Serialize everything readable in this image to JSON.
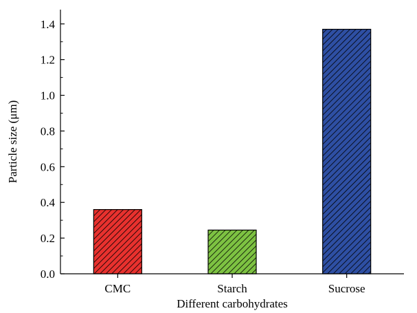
{
  "chart_data": {
    "type": "bar",
    "title": "",
    "categories": [
      "CMC",
      "Starch",
      "Sucrose"
    ],
    "series": [
      {
        "values": [
          0.36,
          0.245,
          1.37
        ],
        "colors": [
          "#e8312e",
          "#7dc242",
          "#2e4fa3"
        ]
      }
    ],
    "xlabel": "Different carbohydrates",
    "ylabel": "Particle size (μm)",
    "ylim": [
      0,
      1.48
    ],
    "yticks": [
      0.0,
      0.2,
      0.4,
      0.6,
      0.8,
      1.0,
      1.2,
      1.4
    ],
    "ytick_labels": [
      "0.0",
      "0.2",
      "0.4",
      "0.6",
      "0.8",
      "1.0",
      "1.2",
      "1.4"
    ],
    "bar_fill": "diagonal-hatch",
    "grid": false,
    "legend": "none"
  }
}
